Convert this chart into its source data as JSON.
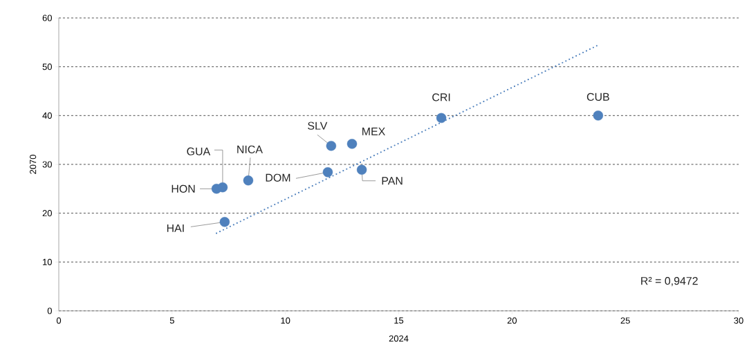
{
  "chart_data": {
    "type": "scatter",
    "xlabel": "2024",
    "ylabel": "2070",
    "xlim": [
      0,
      30
    ],
    "ylim": [
      0,
      60
    ],
    "xticks": [
      0,
      5,
      10,
      15,
      20,
      25,
      30
    ],
    "yticks": [
      0,
      10,
      20,
      30,
      40,
      50,
      60
    ],
    "grid": "y",
    "marker": "circle",
    "series": [
      {
        "type": "scatter",
        "color": "#4f81bd",
        "x": [
          6.96,
          7.23,
          7.32,
          8.36,
          11.87,
          12.02,
          12.94,
          13.37,
          16.88,
          23.8
        ],
        "values": [
          25.0,
          25.3,
          18.2,
          26.7,
          28.4,
          33.8,
          34.2,
          28.9,
          39.5,
          40.0
        ]
      },
      {
        "type": "line",
        "line_style": "dotted",
        "marker": "none",
        "color": "#4f81bd",
        "x": [
          6.96,
          23.74
        ],
        "values": [
          15.9,
          54.3
        ]
      }
    ],
    "annotations": [
      {
        "text": "HON",
        "x": 6.96,
        "y": 25.0
      },
      {
        "text": "GUA",
        "x": 7.23,
        "y": 25.3
      },
      {
        "text": "HAI",
        "x": 7.32,
        "y": 18.2
      },
      {
        "text": "NICA",
        "x": 8.36,
        "y": 26.7
      },
      {
        "text": "DOM",
        "x": 11.87,
        "y": 28.4
      },
      {
        "text": "SLV",
        "x": 12.02,
        "y": 33.8
      },
      {
        "text": "MEX",
        "x": 12.94,
        "y": 34.2
      },
      {
        "text": "PAN",
        "x": 13.37,
        "y": 28.9
      },
      {
        "text": "CRI",
        "x": 16.88,
        "y": 39.5
      },
      {
        "text": "CUB",
        "x": 23.8,
        "y": 40.0
      },
      "R² = 0,9472"
    ]
  }
}
